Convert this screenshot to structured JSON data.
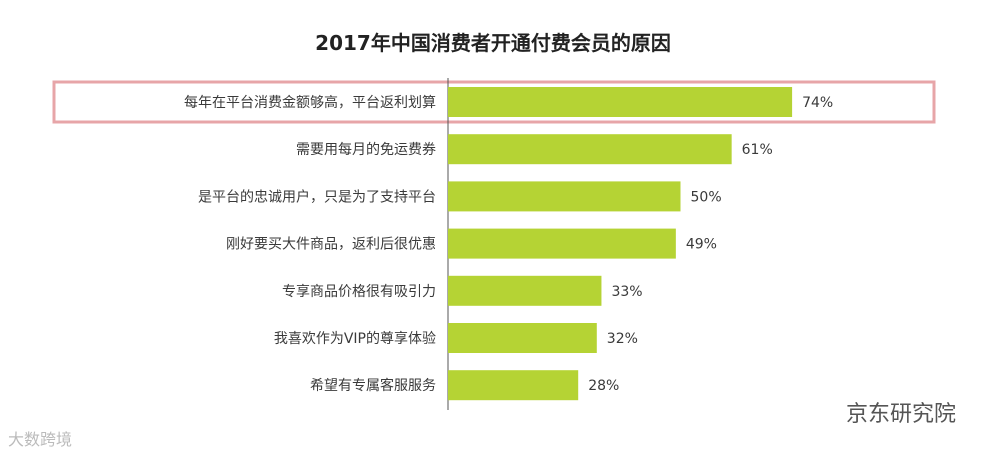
{
  "chart_data": {
    "type": "bar",
    "orientation": "horizontal",
    "title": "2017年中国消费者开通付费会员的原因",
    "categories": [
      "每年在平台消费金额够高，平台返利划算",
      "需要用每月的免运费券",
      "是平台的忠诚用户，只是为了支持平台",
      "刚好要买大件商品，返利后很优惠",
      "专享商品价格很有吸引力",
      "我喜欢作为VIP的尊享体验",
      "希望有专属客服服务"
    ],
    "values": [
      74,
      61,
      50,
      49,
      33,
      32,
      28
    ],
    "value_labels": [
      "74%",
      "61%",
      "50%",
      "49%",
      "33%",
      "32%",
      "28%"
    ],
    "xlim": [
      0,
      100
    ],
    "highlighted_index": 0,
    "bar_color": "#b5d334",
    "highlight_color": "#e7a5a8",
    "grid": false
  },
  "watermarks": {
    "right": "京东研究院",
    "left": "大数跨境"
  }
}
